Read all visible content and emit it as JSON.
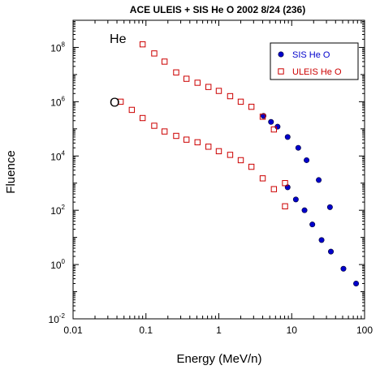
{
  "chart_data": {
    "type": "scatter",
    "title": "ACE ULEIS + SIS He O  2002 8/24 (236)",
    "xlabel": "Energy (MeV/n)",
    "ylabel": "Fluence",
    "x_scale": "log",
    "y_scale": "log",
    "xlim": [
      0.01,
      100
    ],
    "ylim": [
      0.01,
      1000000000
    ],
    "x_ticks": [
      {
        "value": 0.01,
        "label": "0.01"
      },
      {
        "value": 0.1,
        "label": "0.1"
      },
      {
        "value": 1,
        "label": "1"
      },
      {
        "value": 10,
        "label": "10"
      },
      {
        "value": 100,
        "label": "100"
      }
    ],
    "y_ticks": [
      {
        "value": 0.01,
        "base": "10",
        "exp": "-2"
      },
      {
        "value": 1,
        "base": "10",
        "exp": "0"
      },
      {
        "value": 100,
        "base": "10",
        "exp": "2"
      },
      {
        "value": 10000,
        "base": "10",
        "exp": "4"
      },
      {
        "value": 1000000,
        "base": "10",
        "exp": "6"
      },
      {
        "value": 100000000,
        "base": "10",
        "exp": "8"
      }
    ],
    "grid": false,
    "legend_position": "top-right",
    "annotations": [
      {
        "text": "He",
        "x": 0.02,
        "y": 220000000
      },
      {
        "text": "O",
        "x": 0.02,
        "y": 1000000
      }
    ],
    "series": [
      {
        "name": "SIS He O",
        "marker": "filled-circle",
        "color": "#0000cc",
        "group": "He",
        "x": [
          4.1,
          5.2,
          6.4,
          8.8,
          12.3,
          16.0,
          23.5,
          33.5
        ],
        "y": [
          300000,
          180000,
          120000,
          50000,
          20000,
          7000,
          1300,
          130
        ]
      },
      {
        "name": "SIS He O",
        "marker": "filled-circle",
        "color": "#0000cc",
        "group": "O",
        "x": [
          8.8,
          11.4,
          15.0,
          19.2,
          25.7,
          34.5,
          51.3,
          76.5
        ],
        "y": [
          700,
          250,
          100,
          30,
          8,
          3,
          0.7,
          0.2
        ]
      },
      {
        "name": "ULEIS He O",
        "marker": "open-square",
        "color": "#cc0000",
        "group": "He",
        "x": [
          0.09,
          0.13,
          0.18,
          0.26,
          0.36,
          0.51,
          0.72,
          1.0,
          1.43,
          2.0,
          2.8,
          4.0,
          5.7,
          8.1
        ],
        "y": [
          130000000,
          60000000,
          30000000,
          12000000,
          7000000,
          5000000,
          3500000,
          2500000,
          1600000,
          1000000,
          650000,
          280000,
          95000,
          1000
        ]
      },
      {
        "name": "ULEIS He O",
        "marker": "open-square",
        "color": "#cc0000",
        "group": "O",
        "x": [
          0.045,
          0.064,
          0.09,
          0.13,
          0.18,
          0.26,
          0.36,
          0.51,
          0.72,
          1.0,
          1.43,
          2.0,
          2.8,
          4.0,
          5.7,
          8.1
        ],
        "y": [
          1000000,
          500000,
          250000,
          130000,
          80000,
          55000,
          40000,
          32000,
          22000,
          15000,
          11000,
          7000,
          4000,
          1500,
          600,
          140
        ]
      }
    ],
    "legend": [
      {
        "label": "SIS He O",
        "marker": "filled-circle",
        "color": "#0000cc"
      },
      {
        "label": "ULEIS He O",
        "marker": "open-square",
        "color": "#cc0000"
      }
    ]
  }
}
